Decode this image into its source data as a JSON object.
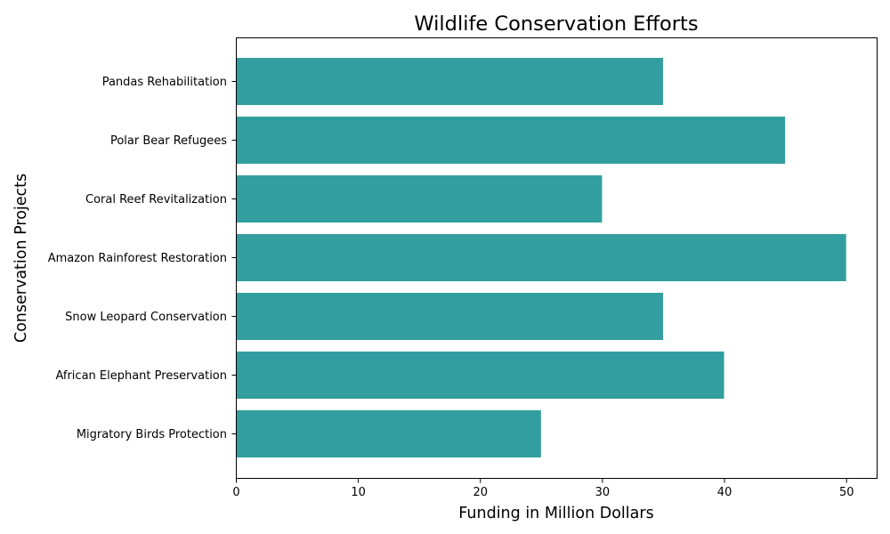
{
  "chart_data": {
    "type": "bar",
    "orientation": "horizontal",
    "title": "Wildlife Conservation Efforts",
    "xlabel": "Funding in Million Dollars",
    "ylabel": "Conservation Projects",
    "categories": [
      "Migratory Birds Protection",
      "African Elephant Preservation",
      "Snow Leopard Conservation",
      "Amazon Rainforest Restoration",
      "Coral Reef Revitalization",
      "Polar Bear Refugees",
      "Pandas Rehabilitation"
    ],
    "values": [
      25,
      40,
      35,
      50,
      30,
      45,
      35
    ],
    "xlim": [
      0,
      52.5
    ],
    "xticks": [
      "0",
      "10",
      "20",
      "30",
      "40",
      "50"
    ],
    "grid": false,
    "legend": "none",
    "bar_color": "#339e9f"
  }
}
